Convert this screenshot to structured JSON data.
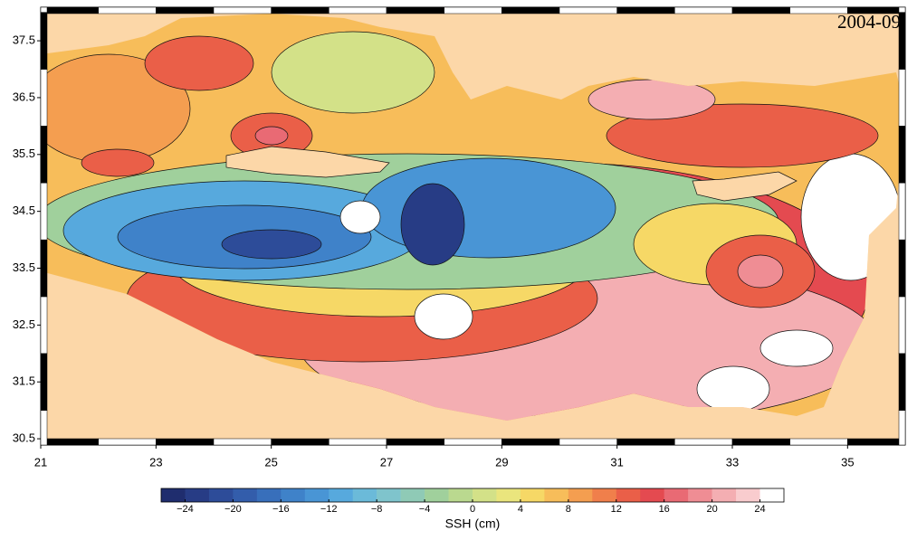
{
  "map": {
    "title": "2004-09",
    "xlim": [
      21,
      36
    ],
    "xticks": [
      21,
      23,
      25,
      27,
      29,
      31,
      33,
      35
    ],
    "ylim": [
      30.39,
      38.09
    ],
    "yticks": [
      30.5,
      31.5,
      32.5,
      33.5,
      34.5,
      35.5,
      36.5,
      37.5
    ],
    "colorbar": {
      "label": "SSH (cm)",
      "lim": [
        -26,
        26
      ],
      "ticks": [
        {
          "value": -24,
          "label": "−24"
        },
        {
          "value": -20,
          "label": "−20"
        },
        {
          "value": -16,
          "label": "−16"
        },
        {
          "value": -12,
          "label": "−12"
        },
        {
          "value": -8,
          "label": "−8"
        },
        {
          "value": -4,
          "label": "−4"
        },
        0,
        4,
        8,
        12,
        16,
        20,
        24
      ],
      "colors": [
        "#1f2d6e",
        "#273c85",
        "#2d4c99",
        "#335dab",
        "#386fbb",
        "#3f82c9",
        "#4995d5",
        "#57a9dd",
        "#6bbad9",
        "#7fc4cc",
        "#8fcab6",
        "#a0d09c",
        "#bad98f",
        "#d3e188",
        "#eae57d",
        "#f6d866",
        "#f7bd5a",
        "#f49e50",
        "#f07f4b",
        "#ea5f48",
        "#e44a50",
        "#e96a74",
        "#ef8d94",
        "#f4aeb2",
        "#f9ccce",
        "#ffffff"
      ]
    }
  }
}
